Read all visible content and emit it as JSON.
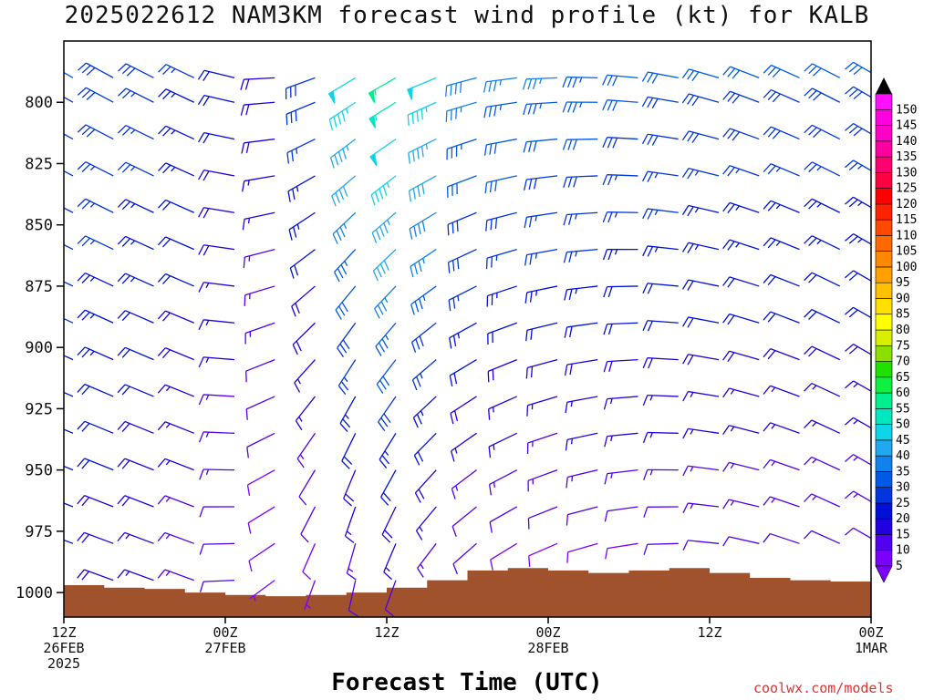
{
  "chart_data": {
    "type": "wind-barb profile",
    "title": "2025022612 NAM3KM forecast wind profile (kt) for KALB",
    "xlabel": "Forecast Time (UTC)",
    "y_axis": {
      "label": "",
      "ticks": [
        800,
        825,
        850,
        875,
        900,
        925,
        950,
        975,
        1000
      ],
      "range": [
        775,
        1010
      ],
      "inverted": true,
      "units": "hPa"
    },
    "x_axis": {
      "range_hours": [
        0,
        60
      ],
      "ticks": [
        {
          "hour": 0,
          "lines": [
            "12Z",
            "26FEB",
            "2025"
          ]
        },
        {
          "hour": 12,
          "lines": [
            "00Z",
            "27FEB"
          ]
        },
        {
          "hour": 24,
          "lines": [
            "12Z"
          ]
        },
        {
          "hour": 36,
          "lines": [
            "00Z",
            "28FEB"
          ]
        },
        {
          "hour": 48,
          "lines": [
            "12Z"
          ]
        },
        {
          "hour": 60,
          "lines": [
            "00Z",
            "1MAR"
          ]
        }
      ]
    },
    "surface_pressure": {
      "hours": [
        0,
        3,
        6,
        9,
        12,
        15,
        18,
        21,
        24,
        27,
        30,
        33,
        36,
        39,
        42,
        45,
        48,
        51,
        54,
        57,
        60
      ],
      "pressure": [
        997,
        998,
        998.5,
        1000,
        1001,
        1001.5,
        1001,
        1000,
        998,
        995,
        991,
        990,
        991,
        992,
        991,
        990,
        992,
        994,
        995,
        995.5,
        996.5
      ]
    },
    "winds": {
      "levels": [
        790,
        800,
        815,
        830,
        845,
        860,
        875,
        890,
        905,
        920,
        935,
        950,
        965,
        980,
        995
      ],
      "hours": [
        0,
        3,
        6,
        9,
        12,
        15,
        18,
        21,
        24,
        27,
        30,
        33,
        36,
        39,
        42,
        45,
        48,
        51,
        54,
        57,
        60
      ],
      "speed_profile_kt": {
        "hours": [
          0,
          6,
          12,
          16,
          20,
          22,
          25,
          28,
          30,
          34,
          38,
          42,
          48,
          54,
          60
        ],
        "top": [
          30,
          28,
          22,
          18,
          40,
          55,
          55,
          45,
          38,
          35,
          35,
          32,
          30,
          30,
          30
        ],
        "bottom": [
          20,
          16,
          10,
          6,
          8,
          12,
          12,
          10,
          8,
          6,
          7,
          8,
          10,
          10,
          10
        ]
      },
      "direction_profile_deg": {
        "hours": [
          0,
          10,
          18,
          22,
          28,
          34,
          42,
          50,
          60
        ],
        "top": [
          300,
          295,
          250,
          235,
          250,
          265,
          275,
          290,
          300
        ],
        "bottom": [
          290,
          290,
          200,
          190,
          220,
          240,
          260,
          280,
          300
        ]
      }
    },
    "colorbar": {
      "labels": [
        5,
        10,
        15,
        20,
        25,
        30,
        35,
        40,
        45,
        50,
        55,
        60,
        65,
        70,
        75,
        80,
        85,
        90,
        95,
        100,
        105,
        110,
        115,
        120,
        125,
        130,
        135,
        140,
        145,
        150
      ],
      "colors": [
        "#7b00ff",
        "#5200f0",
        "#2200e0",
        "#0010d8",
        "#0035e0",
        "#005ae8",
        "#1082ee",
        "#20a8f0",
        "#10d4e8",
        "#00e8c0",
        "#00f090",
        "#10f040",
        "#20e000",
        "#8ce000",
        "#d8f000",
        "#ffff00",
        "#ffe000",
        "#ffc000",
        "#ffa000",
        "#ff8800",
        "#ff6a00",
        "#ff4800",
        "#ff2200",
        "#ff0000",
        "#ff0040",
        "#ff0070",
        "#ff00a0",
        "#ff00c8",
        "#ff00e0",
        "#ff10ff"
      ]
    },
    "terrain_color": "#a0522d"
  },
  "credit": "coolwx.com/models"
}
